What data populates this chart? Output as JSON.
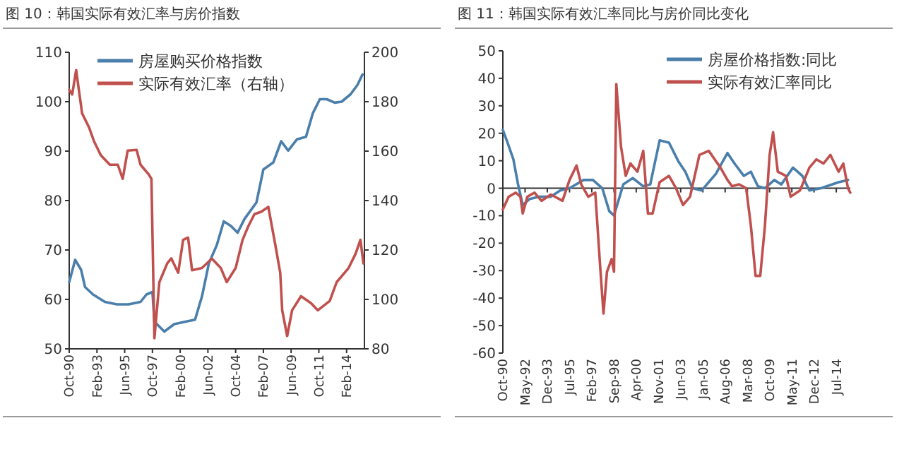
{
  "chart_data": [
    {
      "type": "line",
      "title": "图 10：韩国实际有效汇率与房价指数",
      "series": [
        {
          "name": "房屋购买价格指数",
          "color": "#4a7eab",
          "x": [
            "1990-10",
            "1991-04",
            "1991-10",
            "1992-02",
            "1992-10",
            "1993-10",
            "1994-10",
            "1995-10",
            "1996-10",
            "1997-04",
            "1997-10",
            "1997-12",
            "1998-10",
            "1999-08",
            "2000-10",
            "2001-05",
            "2001-12",
            "2002-07",
            "2003-03",
            "2003-10",
            "2004-05",
            "2004-12",
            "2005-07",
            "2006-07",
            "2007-02",
            "2007-12",
            "2008-08",
            "2009-03",
            "2009-12",
            "2010-09",
            "2011-04",
            "2011-11",
            "2012-06",
            "2013-02",
            "2013-09",
            "2014-06",
            "2015-01",
            "2015-06"
          ],
          "values": [
            63.5,
            68,
            66,
            62.5,
            61,
            59.5,
            59,
            59,
            59.5,
            61,
            61.5,
            55.5,
            53.5,
            55,
            55.6,
            55.9,
            60.6,
            67.3,
            71,
            75.8,
            74.9,
            73.5,
            76.3,
            79.6,
            86.3,
            87.7,
            92,
            90.1,
            92.4,
            92.9,
            97.7,
            100.5,
            100.5,
            99.8,
            100,
            101.5,
            103.4,
            105.5
          ]
        },
        {
          "name": "实际有效汇率（右轴）",
          "color": "#c0504d",
          "axis": "y2",
          "x": [
            "1990-10",
            "1991-01",
            "1991-05",
            "1991-11",
            "1992-06",
            "1992-11",
            "1993-06",
            "1994-03",
            "1994-11",
            "1995-04",
            "1995-09",
            "1996-06",
            "1996-10",
            "1997-06",
            "1997-09",
            "1997-12",
            "1998-05",
            "1999-01",
            "1999-05",
            "1999-12",
            "2000-05",
            "2000-10",
            "2001-02",
            "2001-12",
            "2002-10",
            "2003-07",
            "2004-01",
            "2004-10",
            "2005-05",
            "2005-11",
            "2006-05",
            "2006-12",
            "2007-07",
            "2008-02",
            "2008-07",
            "2008-09",
            "2009-02",
            "2009-07",
            "2010-04",
            "2011-02",
            "2011-09",
            "2012-09",
            "2013-04",
            "2014-04",
            "2014-11",
            "2015-04",
            "2015-07"
          ],
          "values": [
            184.8,
            182.9,
            192.8,
            175.3,
            169.6,
            164,
            158.3,
            154.5,
            154.5,
            148.8,
            160.2,
            160.5,
            154.5,
            150.7,
            148.8,
            84.3,
            107,
            114.6,
            116.6,
            110.8,
            124.1,
            125,
            111.8,
            112.7,
            116.5,
            112.7,
            107,
            112.7,
            124.1,
            129.8,
            134.5,
            135.5,
            137.4,
            122.2,
            110.8,
            95.6,
            85.2,
            95.6,
            101.3,
            98.5,
            95.6,
            99.4,
            107,
            112.7,
            118.4,
            124.1,
            114.6
          ]
        }
      ],
      "xlim": [
        "1990-10",
        "2015-08"
      ],
      "xticks": [
        {
          "value": "1990-10",
          "label": "Oct-90"
        },
        {
          "value": "1993-02",
          "label": "Feb-93"
        },
        {
          "value": "1995-06",
          "label": "Jun-95"
        },
        {
          "value": "1997-10",
          "label": "Oct-97"
        },
        {
          "value": "2000-02",
          "label": "Feb-00"
        },
        {
          "value": "2002-06",
          "label": "Jun-02"
        },
        {
          "value": "2004-10",
          "label": "Oct-04"
        },
        {
          "value": "2007-02",
          "label": "Feb-07"
        },
        {
          "value": "2009-06",
          "label": "Jun-09"
        },
        {
          "value": "2011-10",
          "label": "Oct-11"
        },
        {
          "value": "2014-02",
          "label": "Feb-14"
        }
      ],
      "ylim": [
        50,
        110
      ],
      "yticks": [
        50,
        60,
        70,
        80,
        90,
        100,
        110
      ],
      "y2lim": [
        80,
        200
      ],
      "y2ticks": [
        80,
        100,
        120,
        140,
        160,
        180,
        200
      ],
      "legend": "top left"
    },
    {
      "type": "line",
      "title": "图 11：韩国实际有效汇率同比与房价同比变化",
      "series": [
        {
          "name": "房屋价格指数:同比",
          "color": "#4a7eab",
          "x": [
            "1990-10",
            "1991-02",
            "1991-07",
            "1991-11",
            "1992-03",
            "1992-09",
            "1993-05",
            "1994-03",
            "1994-11",
            "1995-07",
            "1996-07",
            "1997-03",
            "1997-11",
            "1998-05",
            "1998-09",
            "1999-05",
            "2000-01",
            "2000-10",
            "2001-04",
            "2001-12",
            "2002-08",
            "2003-04",
            "2003-10",
            "2004-04",
            "2004-12",
            "2005-12",
            "2006-10",
            "2007-04",
            "2007-12",
            "2008-06",
            "2008-12",
            "2009-06",
            "2010-02",
            "2010-08",
            "2011-06",
            "2012-02",
            "2012-08",
            "2013-06",
            "2014-09",
            "2015-05"
          ],
          "values": [
            21.2,
            16.6,
            10.5,
            1.4,
            -6.1,
            -3.9,
            -3.1,
            -3.1,
            -0.8,
            0,
            3,
            3,
            0,
            -8.4,
            -9.9,
            1.4,
            3.7,
            0.7,
            1.4,
            17.4,
            16.6,
            9.8,
            6,
            0,
            -0.8,
            5.2,
            12.8,
            9,
            4.5,
            6,
            0.7,
            0,
            3,
            1.4,
            7.5,
            4.5,
            -0.8,
            0,
            2.2,
            3
          ]
        },
        {
          "name": "实际有效汇率同比",
          "color": "#c0504d",
          "x": [
            "1990-10",
            "1991-03",
            "1991-09",
            "1992-01",
            "1992-03",
            "1992-07",
            "1993-01",
            "1993-07",
            "1994-03",
            "1995-01",
            "1995-07",
            "1996-01",
            "1996-05",
            "1996-11",
            "1997-05",
            "1997-09",
            "1997-12",
            "1998-03",
            "1998-07",
            "1998-09",
            "1998-11",
            "1999-03",
            "1999-07",
            "1999-11",
            "2000-05",
            "2000-10",
            "2001-02",
            "2001-06",
            "2001-12",
            "2002-08",
            "2003-02",
            "2003-08",
            "2004-02",
            "2004-10",
            "2005-06",
            "2006-04",
            "2006-10",
            "2007-02",
            "2007-08",
            "2008-02",
            "2008-06",
            "2008-10",
            "2009-02",
            "2009-06",
            "2009-10",
            "2010-01",
            "2010-05",
            "2010-12",
            "2011-04",
            "2011-12",
            "2012-08",
            "2013-02",
            "2013-08",
            "2014-02",
            "2014-09",
            "2015-01",
            "2015-05",
            "2015-07"
          ],
          "values": [
            -7.7,
            -3.1,
            -1.6,
            -3.1,
            -9.2,
            -3.1,
            -1.6,
            -4.6,
            -2.3,
            -4.6,
            3,
            8.3,
            1.4,
            -3.1,
            -1.6,
            -27.4,
            -45.6,
            -30.4,
            -25.8,
            -30.4,
            37.9,
            15.1,
            4.5,
            9,
            6,
            13.6,
            -9.2,
            -9.2,
            2.2,
            4.5,
            0,
            -6.1,
            -3.1,
            12.1,
            13.6,
            7.5,
            3,
            0.7,
            1.4,
            0,
            -13.7,
            -31.9,
            -31.9,
            -13.7,
            12.1,
            20.4,
            6,
            4.5,
            -3.1,
            -0.8,
            7.5,
            10.5,
            9,
            12.1,
            6,
            9,
            0,
            -1.6
          ]
        }
      ],
      "xlim": [
        "1990-10",
        "2015-07"
      ],
      "xticks": [
        {
          "value": "1990-10",
          "label": "Oct-90"
        },
        {
          "value": "1992-05",
          "label": "May-92"
        },
        {
          "value": "1993-12",
          "label": "Dec-93"
        },
        {
          "value": "1995-07",
          "label": "Jul-95"
        },
        {
          "value": "1997-02",
          "label": "Feb-97"
        },
        {
          "value": "1998-09",
          "label": "Sep-98"
        },
        {
          "value": "2000-04",
          "label": "Apr-00"
        },
        {
          "value": "2001-11",
          "label": "Nov-01"
        },
        {
          "value": "2003-06",
          "label": "Jun-03"
        },
        {
          "value": "2005-01",
          "label": "Jan-05"
        },
        {
          "value": "2006-08",
          "label": "Aug-06"
        },
        {
          "value": "2008-03",
          "label": "Mar-08"
        },
        {
          "value": "2009-10",
          "label": "Oct-09"
        },
        {
          "value": "2011-05",
          "label": "May-11"
        },
        {
          "value": "2012-12",
          "label": "Dec-12"
        },
        {
          "value": "2014-07",
          "label": "Jul-14"
        }
      ],
      "ylim": [
        -60,
        50
      ],
      "yticks": [
        -60,
        -50,
        -40,
        -30,
        -20,
        -10,
        0,
        10,
        20,
        30,
        40,
        50
      ],
      "legend": "top right"
    }
  ]
}
